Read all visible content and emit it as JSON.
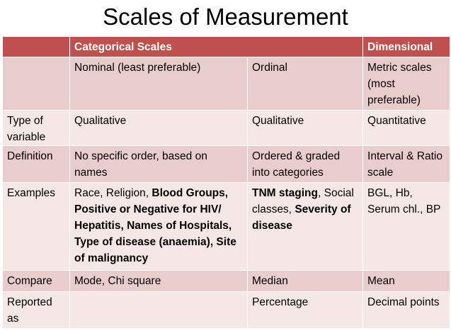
{
  "title": "Scales of Measurement",
  "header": {
    "blank": "",
    "categorical": "Categorical Scales",
    "dimensional": "Dimensional"
  },
  "rows": [
    {
      "label": "",
      "nominal": "Nominal (least preferable)",
      "ordinal": "Ordinal",
      "dimensional": "Metric scales (most preferable)"
    },
    {
      "label": "Type of variable",
      "nominal": "Qualitative",
      "ordinal": "Qualitative",
      "dimensional": "Quantitative"
    },
    {
      "label": "Definition",
      "nominal": "No specific order, based on names",
      "ordinal": "Ordered & graded into categories",
      "dimensional": "Interval & Ratio scale"
    },
    {
      "label": "Examples",
      "nominal_plain": "Race, Religion, ",
      "nominal_bold": "Blood Groups, Positive or Negative for HIV/ Hepatitis, Names of Hospitals, Type of disease (anaemia), Site of malignancy",
      "ordinal_bold1": "TNM staging",
      "ordinal_plain": ", Social classes, ",
      "ordinal_bold2": "Severity of disease",
      "dimensional": "BGL, Hb, Serum chl., BP"
    },
    {
      "label": "Compare",
      "nominal": "Mode, Chi square",
      "ordinal": "Median",
      "dimensional": "Mean"
    },
    {
      "label": "Reported as",
      "nominal": "",
      "ordinal": "Percentage",
      "dimensional": "Decimal points"
    }
  ],
  "colors": {
    "header": "#c0504d",
    "row_dark": "#e8cdcc",
    "row_light": "#f4e7e6"
  }
}
